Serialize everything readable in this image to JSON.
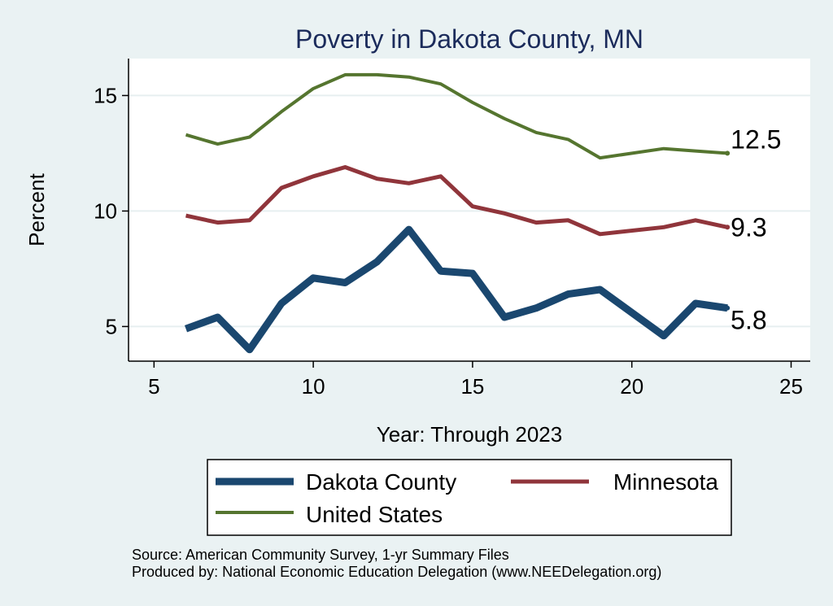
{
  "chart_data": {
    "type": "line",
    "title": "Poverty in Dakota County, MN",
    "xlabel": "Year: Through 2023",
    "ylabel": "Percent",
    "xlim": [
      4.2,
      25.6
    ],
    "ylim": [
      3.5,
      16.6
    ],
    "xticks": [
      5,
      10,
      15,
      20,
      25
    ],
    "yticks": [
      5,
      10,
      15
    ],
    "grid": "horizontal",
    "series": [
      {
        "name": "Dakota County",
        "color": "#1a476f",
        "x": [
          6,
          7,
          8,
          9,
          10,
          11,
          12,
          13,
          14,
          15,
          16,
          17,
          18,
          19,
          21,
          22,
          23
        ],
        "y": [
          4.9,
          5.4,
          4.0,
          6.0,
          7.1,
          6.9,
          7.8,
          9.2,
          7.4,
          7.3,
          5.4,
          5.8,
          6.4,
          6.6,
          4.6,
          6.0,
          5.8
        ],
        "end_label": "5.8"
      },
      {
        "name": "Minnesota",
        "color": "#90353b",
        "x": [
          6,
          7,
          8,
          9,
          10,
          11,
          12,
          13,
          14,
          15,
          16,
          17,
          18,
          19,
          21,
          22,
          23
        ],
        "y": [
          9.8,
          9.5,
          9.6,
          11.0,
          11.5,
          11.9,
          11.4,
          11.2,
          11.5,
          10.2,
          9.9,
          9.5,
          9.6,
          9.0,
          9.3,
          9.6,
          9.3
        ],
        "end_label": "9.3"
      },
      {
        "name": "United States",
        "color": "#55752f",
        "x": [
          6,
          7,
          8,
          9,
          10,
          11,
          12,
          13,
          14,
          15,
          16,
          17,
          18,
          19,
          21,
          22,
          23
        ],
        "y": [
          13.3,
          12.9,
          13.2,
          14.3,
          15.3,
          15.9,
          15.9,
          15.8,
          15.5,
          14.7,
          14.0,
          13.4,
          13.1,
          12.3,
          12.7,
          12.6,
          12.5
        ],
        "end_label": "12.5"
      }
    ],
    "legend": {
      "placement": "bottom",
      "entries": [
        "Dakota County",
        "Minnesota",
        "United States"
      ]
    }
  },
  "notes": {
    "source": "Source: American Community Survey, 1-yr Summary Files",
    "produced_by": "Produced by: National Economic Education Delegation (www.NEEDelegation.org)"
  }
}
